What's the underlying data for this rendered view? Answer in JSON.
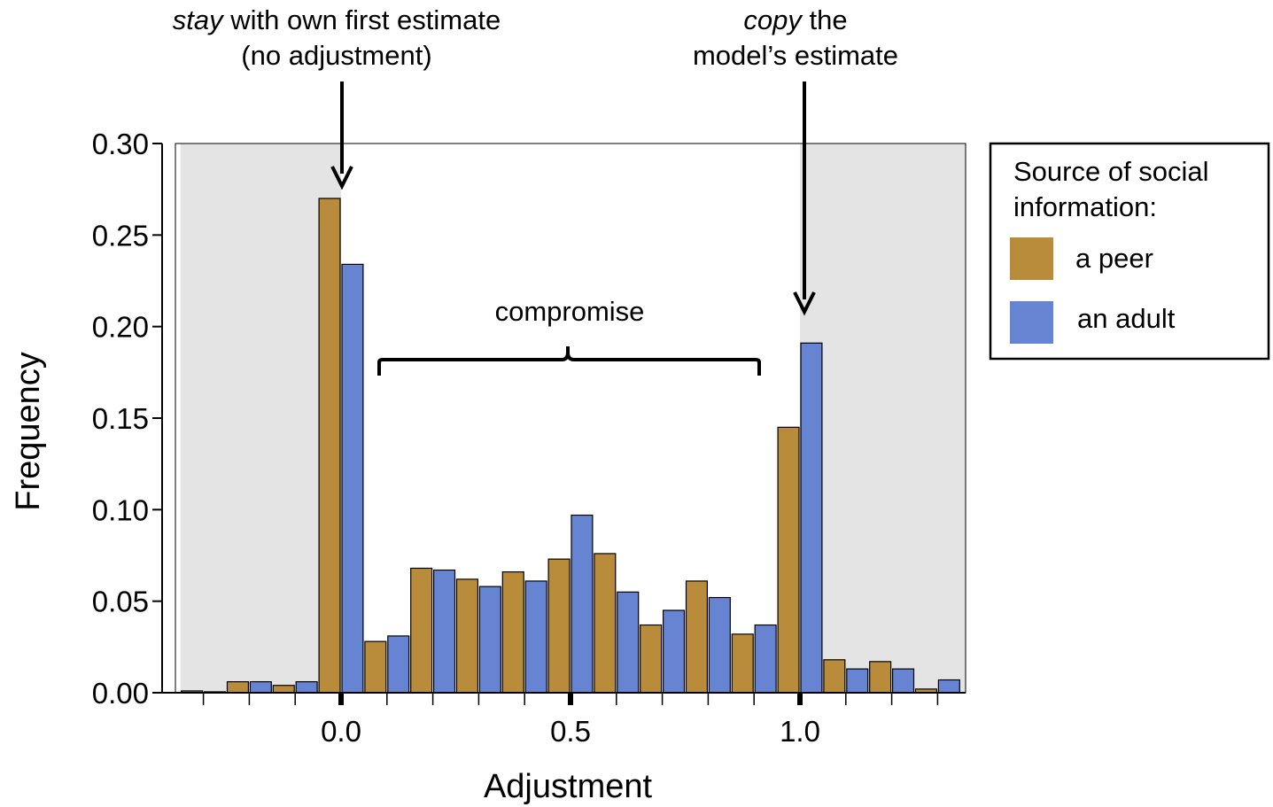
{
  "chart_data": {
    "type": "bar",
    "xlabel": "Adjustment",
    "ylabel": "Frequency",
    "ylim": [
      0,
      0.3
    ],
    "xlim": [
      -0.35,
      1.37
    ],
    "y_ticks": [
      "0.00",
      "0.05",
      "0.10",
      "0.15",
      "0.20",
      "0.25",
      "0.30"
    ],
    "x_ticks": [
      "0.0",
      "0.5",
      "1.0"
    ],
    "bin_width": 0.1,
    "bins": [
      -0.3,
      -0.2,
      -0.1,
      0.0,
      0.1,
      0.2,
      0.3,
      0.4,
      0.5,
      0.6,
      0.7,
      0.8,
      0.9,
      1.0,
      1.1,
      1.2,
      1.3
    ],
    "series": [
      {
        "name": "a peer",
        "color": "#b98c3c",
        "values": [
          0.001,
          0.006,
          0.004,
          0.27,
          0.028,
          0.068,
          0.062,
          0.066,
          0.073,
          0.076,
          0.037,
          0.061,
          0.032,
          0.145,
          0.018,
          0.017,
          0.002
        ]
      },
      {
        "name": "an adult",
        "color": "#6684d2",
        "values": [
          0.0005,
          0.006,
          0.006,
          0.234,
          0.031,
          0.067,
          0.058,
          0.061,
          0.097,
          0.055,
          0.045,
          0.052,
          0.037,
          0.191,
          0.013,
          0.013,
          0.007
        ]
      }
    ],
    "shaded_regions": [
      [
        -0.35,
        0.0
      ],
      [
        1.0,
        1.37
      ]
    ],
    "shade_color": "#e4e4e4",
    "grid": false,
    "legend": {
      "title": "Source of social information:",
      "title_lines": [
        "Source of social",
        "information:"
      ],
      "position": "right"
    },
    "annotations": {
      "stay": {
        "italic": "stay",
        "rest": " with own first estimate",
        "line2": "(no adjustment)"
      },
      "copy": {
        "italic": "copy",
        "rest": " the",
        "line2": "model’s estimate"
      },
      "compromise": "compromise"
    }
  }
}
